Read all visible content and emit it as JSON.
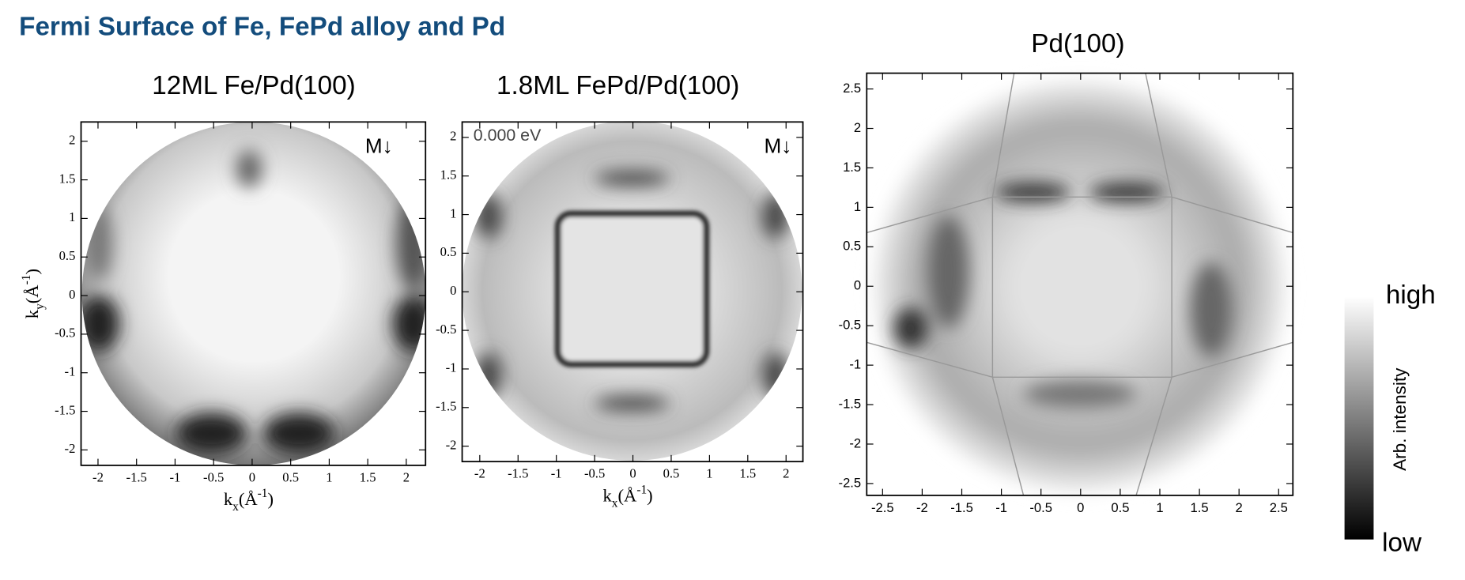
{
  "header": {
    "title": "Fermi Surface of Fe, FePd alloy and Pd"
  },
  "panels": [
    {
      "title": "12ML Fe/Pd(100)",
      "xlim": [
        -2.22,
        2.25
      ],
      "ylim": [
        -2.2,
        2.25
      ],
      "xticks": [
        -2,
        -1.5,
        -1,
        -0.5,
        0,
        0.5,
        1,
        1.5,
        2
      ],
      "yticks": [
        -2,
        -1.5,
        -1,
        -0.5,
        0,
        0.5,
        1,
        1.5,
        2
      ],
      "xlabel": [
        "k",
        "x",
        "(Å",
        "-1",
        ")"
      ],
      "ylabel": [
        "k",
        "y",
        "(Å",
        "-1",
        ")"
      ],
      "annotations": [
        "M↓"
      ]
    },
    {
      "title": "1.8ML FePd/Pd(100)",
      "xlim": [
        -2.23,
        2.22
      ],
      "ylim": [
        -2.2,
        2.2
      ],
      "xticks": [
        -2,
        -1.5,
        -1,
        -0.5,
        0,
        0.5,
        1,
        1.5,
        2
      ],
      "yticks": [
        -2,
        -1.5,
        -1,
        -0.5,
        0,
        0.5,
        1,
        1.5,
        2
      ],
      "xlabel": [
        "k",
        "x",
        "(Å",
        "-1",
        ")"
      ],
      "annotations": [
        "0.000 eV",
        "M↓"
      ]
    },
    {
      "title": "Pd(100)",
      "xlim": [
        -2.7,
        2.68
      ],
      "ylim": [
        -2.65,
        2.7
      ],
      "xticks": [
        -2.5,
        -2,
        -1.5,
        -1,
        -0.5,
        0,
        0.5,
        1,
        1.5,
        2,
        2.5
      ],
      "yticks": [
        -2.5,
        -2,
        -1.5,
        -1,
        -0.5,
        0,
        0.5,
        1,
        1.5,
        2,
        2.5
      ],
      "annotations": []
    }
  ],
  "colorbar": {
    "high": "high",
    "low": "low",
    "label": "Arb. intensity"
  }
}
